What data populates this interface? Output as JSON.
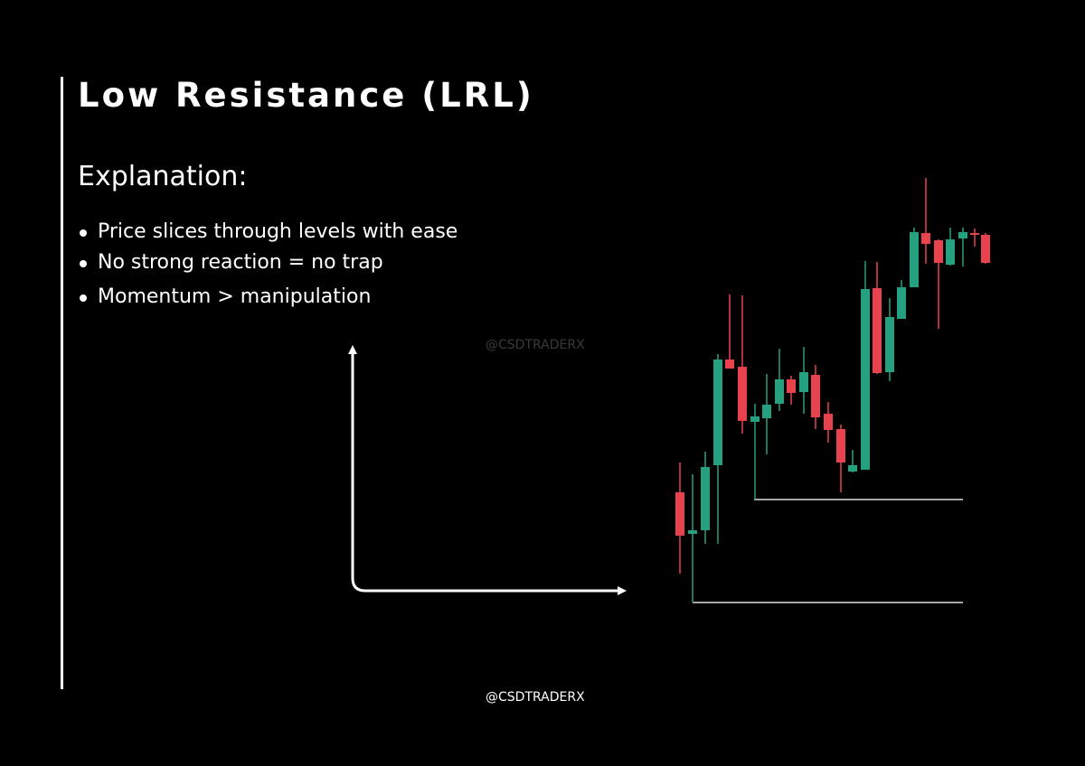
{
  "title": "Low Resistance (LRL)",
  "subtitle": "Explanation:",
  "bullets": [
    "Price slices through levels with ease",
    "No strong reaction = no trap",
    "Momentum > manipulation"
  ],
  "watermark": "@CSDTRADERX",
  "footer": "@CSDTRADERX"
}
